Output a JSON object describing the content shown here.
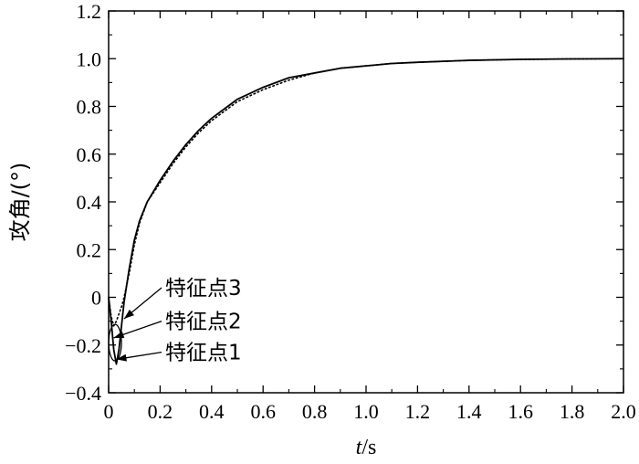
{
  "chart_data": {
    "type": "line",
    "xlabel_italic": "t",
    "xlabel_rest": "/s",
    "ylabel": "攻角/(°)",
    "xlim": [
      0,
      2.0
    ],
    "ylim": [
      -0.4,
      1.2
    ],
    "x_ticks": [
      "0",
      "0.2",
      "0.4",
      "0.6",
      "0.8",
      "1.0",
      "1.2",
      "1.4",
      "1.6",
      "1.8",
      "2.0"
    ],
    "y_ticks": [
      "−0.4",
      "−0.2",
      "0",
      "0.2",
      "0.4",
      "0.6",
      "0.8",
      "1.0",
      "1.2"
    ],
    "grid": false,
    "series": [
      {
        "style": "solid",
        "x": [
          0,
          0.01,
          0.02,
          0.03,
          0.04,
          0.05,
          0.06,
          0.08,
          0.1,
          0.12,
          0.15,
          0.2,
          0.25,
          0.3,
          0.35,
          0.4,
          0.5,
          0.6,
          0.7,
          0.8,
          0.9,
          1.0,
          1.1,
          1.2,
          1.4,
          1.6,
          1.8,
          2.0
        ],
        "y": [
          0,
          -0.1,
          -0.22,
          -0.28,
          -0.22,
          -0.12,
          -0.02,
          0.12,
          0.24,
          0.32,
          0.4,
          0.49,
          0.57,
          0.64,
          0.7,
          0.75,
          0.83,
          0.88,
          0.92,
          0.94,
          0.96,
          0.97,
          0.98,
          0.985,
          0.993,
          0.997,
          0.999,
          1.0
        ]
      },
      {
        "style": "dotted",
        "x": [
          0,
          0.01,
          0.02,
          0.03,
          0.04,
          0.05,
          0.06,
          0.08,
          0.1,
          0.12,
          0.15,
          0.2,
          0.25,
          0.3,
          0.35,
          0.4,
          0.5,
          0.6,
          0.7,
          0.8,
          0.9,
          1.0,
          1.1,
          1.2,
          1.4,
          1.6,
          1.8,
          2.0
        ],
        "y": [
          0,
          -0.08,
          -0.12,
          -0.1,
          -0.07,
          -0.04,
          0.0,
          0.1,
          0.22,
          0.31,
          0.4,
          0.48,
          0.56,
          0.63,
          0.69,
          0.74,
          0.82,
          0.87,
          0.91,
          0.94,
          0.96,
          0.97,
          0.98,
          0.985,
          0.993,
          0.997,
          0.999,
          1.0
        ]
      }
    ],
    "annotations": [
      {
        "label": "特征点3",
        "point": [
          0.06,
          -0.09
        ],
        "text_at": [
          0.22,
          0.04
        ]
      },
      {
        "label": "特征点2",
        "point": [
          0.02,
          -0.17
        ],
        "text_at": [
          0.22,
          -0.1
        ]
      },
      {
        "label": "特征点1",
        "point": [
          0.03,
          -0.26
        ],
        "text_at": [
          0.22,
          -0.23
        ]
      }
    ]
  }
}
